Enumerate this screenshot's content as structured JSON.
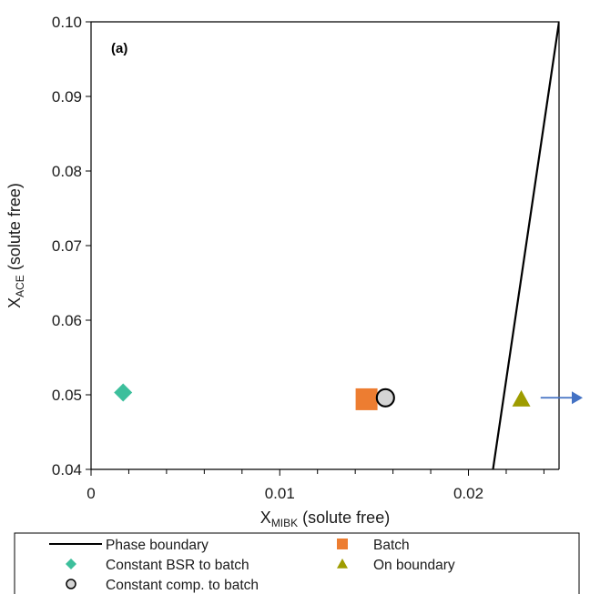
{
  "chart_data": {
    "type": "scatter",
    "panel_label": "(a)",
    "xlabel": {
      "main": "X",
      "sub": "MIBK",
      "rest": "  (solute  free)"
    },
    "ylabel": {
      "main": "X",
      "sub": "ACE",
      "rest": "  (solute  free)"
    },
    "xlim": [
      0,
      0.0248
    ],
    "ylim": [
      0.04,
      0.1
    ],
    "xticks": [
      0,
      0.01,
      0.02
    ],
    "xtick_labels": [
      "0",
      "0.01",
      "0.02"
    ],
    "yticks": [
      0.04,
      0.05,
      0.06,
      0.07,
      0.08,
      0.09,
      0.1
    ],
    "ytick_labels": [
      "0.04",
      "0.05",
      "0.06",
      "0.07",
      "0.08",
      "0.09",
      "0.10"
    ],
    "grid": false,
    "legend_position": "bottom",
    "series": [
      {
        "name": "Phase boundary",
        "kind": "line",
        "color": "#000000",
        "x": [
          0.0213,
          0.0248
        ],
        "y": [
          0.04,
          0.1
        ]
      },
      {
        "name": "Batch",
        "kind": "square",
        "color": "#ed7d31",
        "x": [
          0.0146
        ],
        "y": [
          0.0494
        ]
      },
      {
        "name": "Constant BSR to batch",
        "kind": "diamond",
        "color": "#3dbf9c",
        "x": [
          0.0017
        ],
        "y": [
          0.0503
        ]
      },
      {
        "name": "On boundary",
        "kind": "triangle",
        "color": "#9e9c00",
        "x": [
          0.0228
        ],
        "y": [
          0.0494
        ]
      },
      {
        "name": "Constant comp. to batch",
        "kind": "circle",
        "color": "#d4d4d4",
        "x": [
          0.0156
        ],
        "y": [
          0.0496
        ]
      }
    ],
    "annotations": [
      {
        "kind": "arrow",
        "color": "#4472c4",
        "direction": "right",
        "y": 0.0496,
        "x_start": 0.0231
      }
    ]
  }
}
